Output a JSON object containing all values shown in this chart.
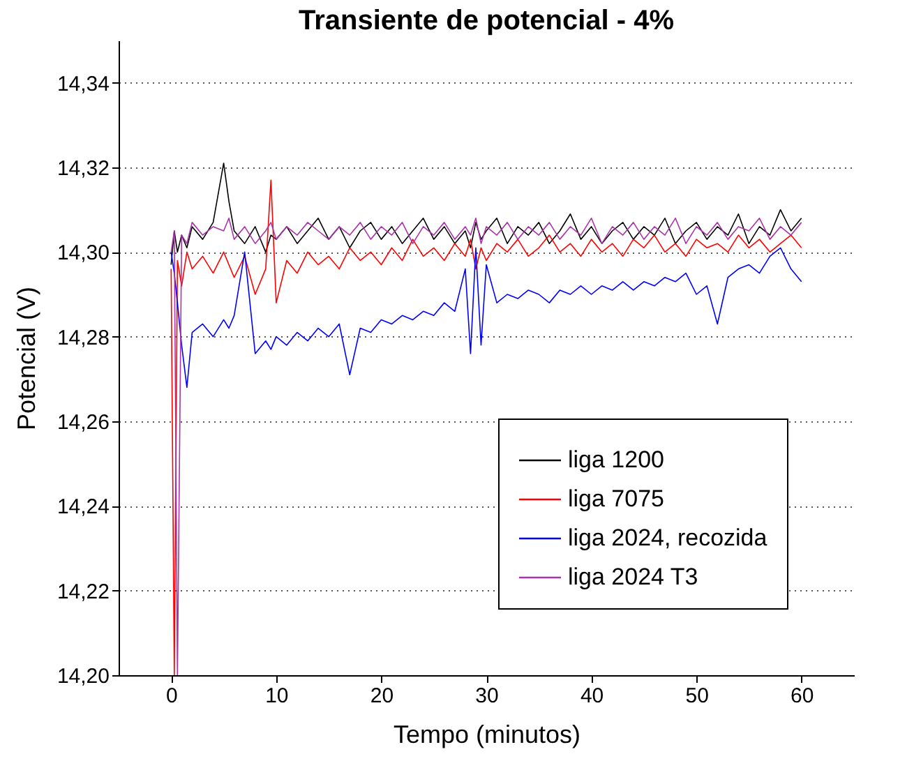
{
  "chart_data": {
    "type": "line",
    "title": "Transiente de potencial - 4%",
    "xlabel": "Tempo (minutos)",
    "ylabel": "Potencial (V)",
    "x": [
      0,
      0.3,
      0.6,
      1,
      1.5,
      2,
      3,
      4,
      5,
      5.5,
      6,
      7,
      8,
      9,
      9.5,
      10,
      11,
      12,
      13,
      14,
      15,
      16,
      17,
      18,
      19,
      20,
      21,
      22,
      23,
      24,
      25,
      26,
      27,
      28,
      28.5,
      29,
      29.5,
      30,
      31,
      32,
      33,
      34,
      35,
      36,
      37,
      38,
      39,
      40,
      41,
      42,
      43,
      44,
      45,
      46,
      47,
      48,
      49,
      50,
      51,
      52,
      53,
      54,
      55,
      56,
      57,
      58,
      59,
      60
    ],
    "series": [
      {
        "name": "liga 1200",
        "color": "#000000",
        "values": [
          14.297,
          14.305,
          14.3,
          14.304,
          14.301,
          14.306,
          14.303,
          14.307,
          14.321,
          14.312,
          14.305,
          14.302,
          14.306,
          14.3,
          14.304,
          14.303,
          14.306,
          14.302,
          14.305,
          14.308,
          14.303,
          14.306,
          14.301,
          14.305,
          14.307,
          14.303,
          14.306,
          14.302,
          14.305,
          14.308,
          14.303,
          14.306,
          14.302,
          14.305,
          14.301,
          14.307,
          14.303,
          14.305,
          14.308,
          14.302,
          14.306,
          14.304,
          14.307,
          14.302,
          14.305,
          14.309,
          14.303,
          14.306,
          14.302,
          14.305,
          14.307,
          14.303,
          14.306,
          14.304,
          14.308,
          14.302,
          14.305,
          14.307,
          14.303,
          14.306,
          14.304,
          14.309,
          14.302,
          14.306,
          14.304,
          14.31,
          14.305,
          14.308
        ]
      },
      {
        "name": "liga 7075",
        "color": "#ff0000",
        "values": [
          14.296,
          14.2,
          14.298,
          14.292,
          14.3,
          14.296,
          14.299,
          14.295,
          14.3,
          14.297,
          14.294,
          14.299,
          14.29,
          14.296,
          14.317,
          14.288,
          14.298,
          14.295,
          14.3,
          14.297,
          14.299,
          14.296,
          14.301,
          14.298,
          14.3,
          14.297,
          14.301,
          14.298,
          14.303,
          14.299,
          14.301,
          14.298,
          14.302,
          14.299,
          14.303,
          14.296,
          14.301,
          14.298,
          14.302,
          14.3,
          14.303,
          14.299,
          14.301,
          14.304,
          14.3,
          14.302,
          14.299,
          14.303,
          14.3,
          14.302,
          14.299,
          14.303,
          14.301,
          14.304,
          14.3,
          14.302,
          14.299,
          14.303,
          14.301,
          14.302,
          14.3,
          14.304,
          14.301,
          14.303,
          14.3,
          14.302,
          14.304,
          14.301
        ]
      },
      {
        "name": "liga 2024, recozida",
        "color": "#0000ff",
        "values": [
          14.3,
          14.295,
          14.288,
          14.278,
          14.268,
          14.281,
          14.283,
          14.28,
          14.284,
          14.282,
          14.285,
          14.3,
          14.276,
          14.279,
          14.277,
          14.28,
          14.278,
          14.281,
          14.279,
          14.282,
          14.28,
          14.283,
          14.271,
          14.282,
          14.281,
          14.284,
          14.283,
          14.285,
          14.284,
          14.286,
          14.285,
          14.288,
          14.286,
          14.296,
          14.276,
          14.301,
          14.278,
          14.297,
          14.288,
          14.29,
          14.289,
          14.291,
          14.29,
          14.288,
          14.291,
          14.29,
          14.292,
          14.29,
          14.292,
          14.291,
          14.293,
          14.291,
          14.293,
          14.292,
          14.294,
          14.293,
          14.295,
          14.29,
          14.292,
          14.283,
          14.294,
          14.296,
          14.297,
          14.295,
          14.299,
          14.301,
          14.296,
          14.293
        ]
      },
      {
        "name": "liga 2024 T3",
        "color": "#aa33aa",
        "values": [
          14.3,
          14.305,
          14.2,
          14.304,
          14.302,
          14.307,
          14.304,
          14.306,
          14.305,
          14.308,
          14.303,
          14.306,
          14.302,
          14.305,
          14.307,
          14.303,
          14.306,
          14.304,
          14.307,
          14.305,
          14.303,
          14.306,
          14.304,
          14.307,
          14.303,
          14.306,
          14.304,
          14.307,
          14.302,
          14.306,
          14.304,
          14.307,
          14.303,
          14.306,
          14.304,
          14.308,
          14.302,
          14.306,
          14.304,
          14.307,
          14.303,
          14.306,
          14.304,
          14.307,
          14.303,
          14.306,
          14.304,
          14.308,
          14.302,
          14.306,
          14.304,
          14.307,
          14.303,
          14.306,
          14.304,
          14.308,
          14.302,
          14.306,
          14.304,
          14.307,
          14.303,
          14.306,
          14.305,
          14.308,
          14.303,
          14.306,
          14.304,
          14.307
        ]
      }
    ],
    "xlim": [
      -5,
      65
    ],
    "xticks": [
      0,
      10,
      20,
      30,
      40,
      50,
      60
    ],
    "ylim": [
      14.2,
      14.35
    ],
    "yticks": [
      {
        "value": 14.2,
        "label": "14,20"
      },
      {
        "value": 14.22,
        "label": "14,22"
      },
      {
        "value": 14.24,
        "label": "14,24"
      },
      {
        "value": 14.26,
        "label": "14,26"
      },
      {
        "value": 14.28,
        "label": "14,28"
      },
      {
        "value": 14.3,
        "label": "14,30"
      },
      {
        "value": 14.32,
        "label": "14,32"
      },
      {
        "value": 14.34,
        "label": "14,34"
      }
    ],
    "grid": "y",
    "legend": "bottom right",
    "line_style": "solid"
  }
}
